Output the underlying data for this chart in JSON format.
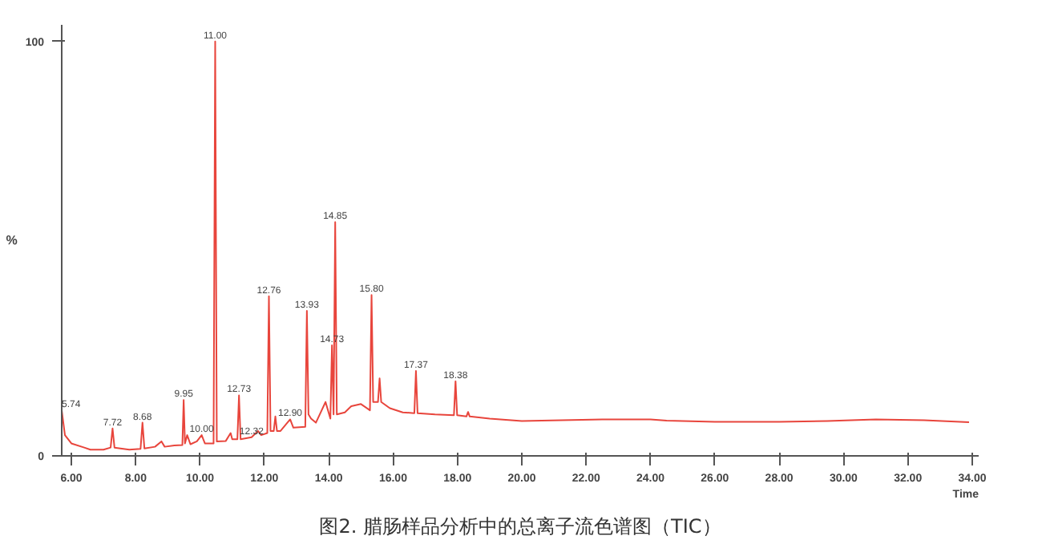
{
  "chart_data": {
    "type": "line",
    "title": "图2. 腊肠样品分析中的总离子流色谱图（TIC）",
    "xlabel": "Time",
    "ylabel": "%",
    "x": [
      5.7,
      5.8,
      6.0,
      6.4,
      6.59,
      7.0,
      7.22,
      7.28,
      7.34,
      7.8,
      8.15,
      8.21,
      8.27,
      8.6,
      8.8,
      8.9,
      9.2,
      9.45,
      9.49,
      9.53,
      9.6,
      9.7,
      9.9,
      10.05,
      10.15,
      10.42,
      10.47,
      10.52,
      10.8,
      10.95,
      11.0,
      11.16,
      11.21,
      11.26,
      11.6,
      11.8,
      11.9,
      12.09,
      12.14,
      12.19,
      12.29,
      12.34,
      12.39,
      12.5,
      12.8,
      12.9,
      13.27,
      13.32,
      13.37,
      13.45,
      13.6,
      13.9,
      14.05,
      14.1,
      14.15,
      14.2,
      14.25,
      14.5,
      14.7,
      15.0,
      15.28,
      15.33,
      15.38,
      15.53,
      15.58,
      15.63,
      15.9,
      16.3,
      16.66,
      16.71,
      16.76,
      17.3,
      17.89,
      17.94,
      17.99,
      18.28,
      18.33,
      18.38,
      19.0,
      20.0,
      22.5,
      24.0,
      24.5,
      26.0,
      28.0,
      29.5,
      31.0,
      32.5,
      33.9
    ],
    "series": [
      {
        "color": "#e8453c",
        "values": [
          11,
          5,
          3,
          2,
          1.5,
          1.5,
          2,
          6.6,
          2,
          1.5,
          1.7,
          8,
          1.8,
          2.2,
          3.5,
          2.2,
          2.5,
          2.6,
          13.5,
          3,
          5,
          2.8,
          3.5,
          5,
          3,
          3,
          100,
          3.5,
          3.6,
          5.5,
          4,
          4,
          14.6,
          4,
          4.5,
          6,
          5,
          5.5,
          38.5,
          6,
          6,
          9.5,
          6,
          6,
          8.8,
          6.8,
          7,
          35,
          10,
          9,
          8,
          13,
          9,
          26.7,
          10,
          56.4,
          10,
          10.5,
          12,
          12.5,
          11,
          38.8,
          13,
          13,
          18.7,
          13,
          11.5,
          10.5,
          10.3,
          20.5,
          10.3,
          10,
          9.8,
          18,
          9.8,
          9.5,
          10.6,
          9.5,
          9,
          8.4,
          8.8,
          8.8,
          8.5,
          8.2,
          8.2,
          8.4,
          8.8,
          8.6,
          8.1
        ]
      }
    ],
    "xlim": [
      5.7,
      34.2
    ],
    "ylim": [
      0,
      104
    ],
    "xticks": [
      {
        "value": 6,
        "label": "6.00"
      },
      {
        "value": 8,
        "label": "8.00"
      },
      {
        "value": 10,
        "label": "10.00"
      },
      {
        "value": 12,
        "label": "12.00"
      },
      {
        "value": 14,
        "label": "14.00"
      },
      {
        "value": 16,
        "label": "16.00"
      },
      {
        "value": 18,
        "label": "18.00"
      },
      {
        "value": 20,
        "label": "20.00"
      },
      {
        "value": 22,
        "label": "22.00"
      },
      {
        "value": 24,
        "label": "24.00"
      },
      {
        "value": 26,
        "label": "26.00"
      },
      {
        "value": 28,
        "label": "28.00"
      },
      {
        "value": 30,
        "label": "30.00"
      },
      {
        "value": 32,
        "label": "32.00"
      },
      {
        "value": 34,
        "label": "34.00"
      }
    ],
    "yticks": [
      0,
      100
    ],
    "annotations": [
      {
        "text": "5.74",
        "x": 5.7,
        "y": 11
      },
      {
        "text": "7.72",
        "x": 7.28,
        "y": 6.6
      },
      {
        "text": "8.68",
        "x": 8.21,
        "y": 8
      },
      {
        "text": "9.95",
        "x": 9.49,
        "y": 13.5
      },
      {
        "text": "10.00",
        "x": 10.05,
        "y": 5
      },
      {
        "text": "11.00",
        "x": 10.47,
        "y": 100
      },
      {
        "text": "12.32",
        "x": 11.6,
        "y": 4.5
      },
      {
        "text": "12.73",
        "x": 11.21,
        "y": 14.6
      },
      {
        "text": "12.76",
        "x": 12.14,
        "y": 38.5
      },
      {
        "text": "12.90",
        "x": 12.8,
        "y": 8.8
      },
      {
        "text": "13.93",
        "x": 13.32,
        "y": 35
      },
      {
        "text": "14.73",
        "x": 14.1,
        "y": 26.7
      },
      {
        "text": "14.85",
        "x": 14.2,
        "y": 56.4
      },
      {
        "text": "15.80",
        "x": 15.33,
        "y": 38.8
      },
      {
        "text": "17.37",
        "x": 16.71,
        "y": 20.5
      },
      {
        "text": "18.38",
        "x": 17.94,
        "y": 18
      }
    ],
    "grid": false
  }
}
